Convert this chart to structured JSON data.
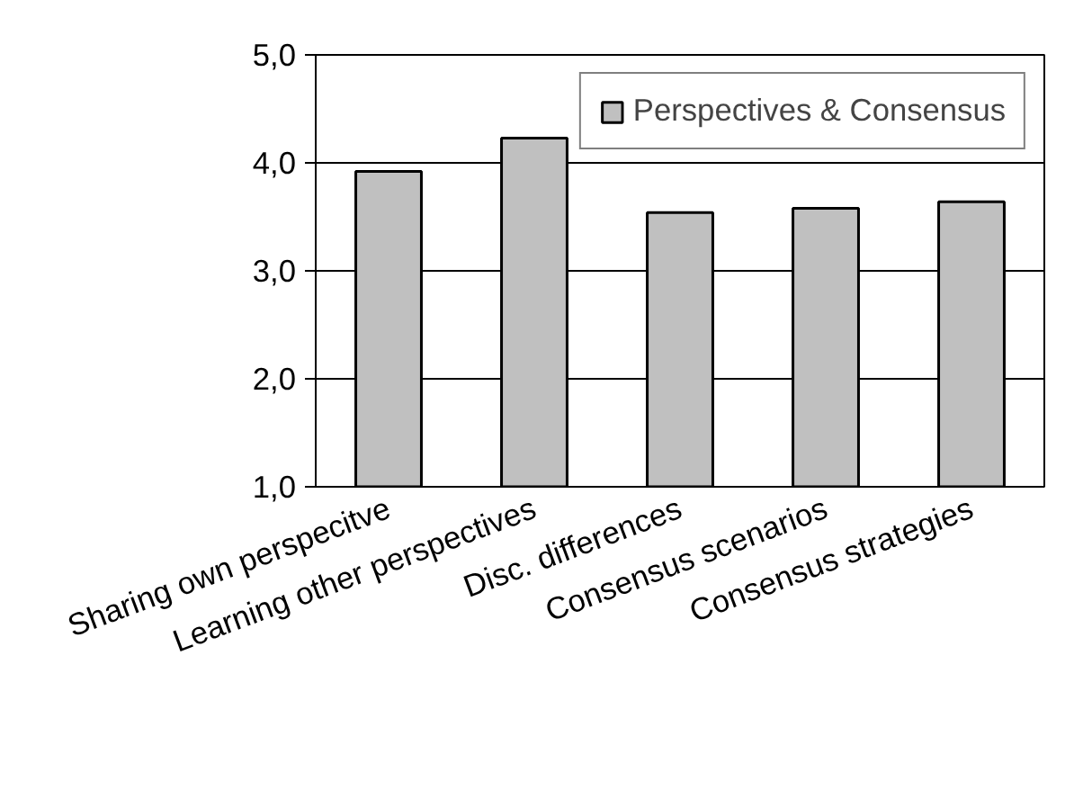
{
  "chart_data": {
    "type": "bar",
    "categories": [
      "Sharing own perspecitve",
      "Learning other perspectives",
      "Disc. differences",
      "Consensus scenarios",
      "Consensus strategies"
    ],
    "series": [
      {
        "name": "Perspectives & Consensus",
        "color": "#c0c0c0",
        "values": [
          3.92,
          4.23,
          3.54,
          3.58,
          3.64
        ]
      }
    ],
    "ylim": [
      1,
      5
    ],
    "yticks": [
      {
        "value": 1,
        "label": "1,0"
      },
      {
        "value": 2,
        "label": "2,0"
      },
      {
        "value": 3,
        "label": "3,0"
      },
      {
        "value": 4,
        "label": "4,0"
      },
      {
        "value": 5,
        "label": "5,0"
      }
    ],
    "grid": "y",
    "legend": "top right"
  }
}
